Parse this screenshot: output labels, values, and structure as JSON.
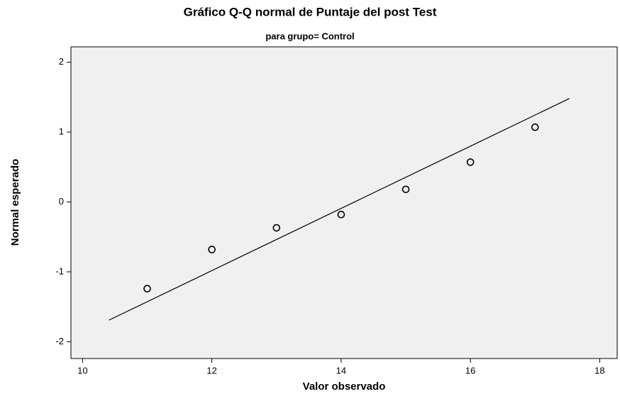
{
  "chart_data": {
    "type": "scatter",
    "title": "Gráfico Q-Q normal de Puntaje del post Test",
    "subtitle": "para grupo= Control",
    "xlabel": "Valor observado",
    "ylabel": "Normal esperado",
    "series": [
      {
        "color": "#000000",
        "x": [
          11,
          12,
          13,
          14,
          15,
          16,
          17
        ],
        "values": [
          -1.24,
          -0.68,
          -0.37,
          -0.18,
          0.18,
          0.57,
          1.07
        ]
      }
    ],
    "reference_line": {
      "color": "#000000",
      "x": [
        10.41,
        17.53
      ],
      "values": [
        -1.69,
        1.48
      ]
    },
    "xlim": [
      9.82,
      18.27
    ],
    "xticks": [
      10,
      12,
      14,
      16,
      18
    ],
    "ylim": [
      -2.24,
      2.22
    ],
    "yticks": [
      -2,
      -1,
      0,
      1,
      2
    ],
    "plot_background": "#f0f0f0"
  }
}
